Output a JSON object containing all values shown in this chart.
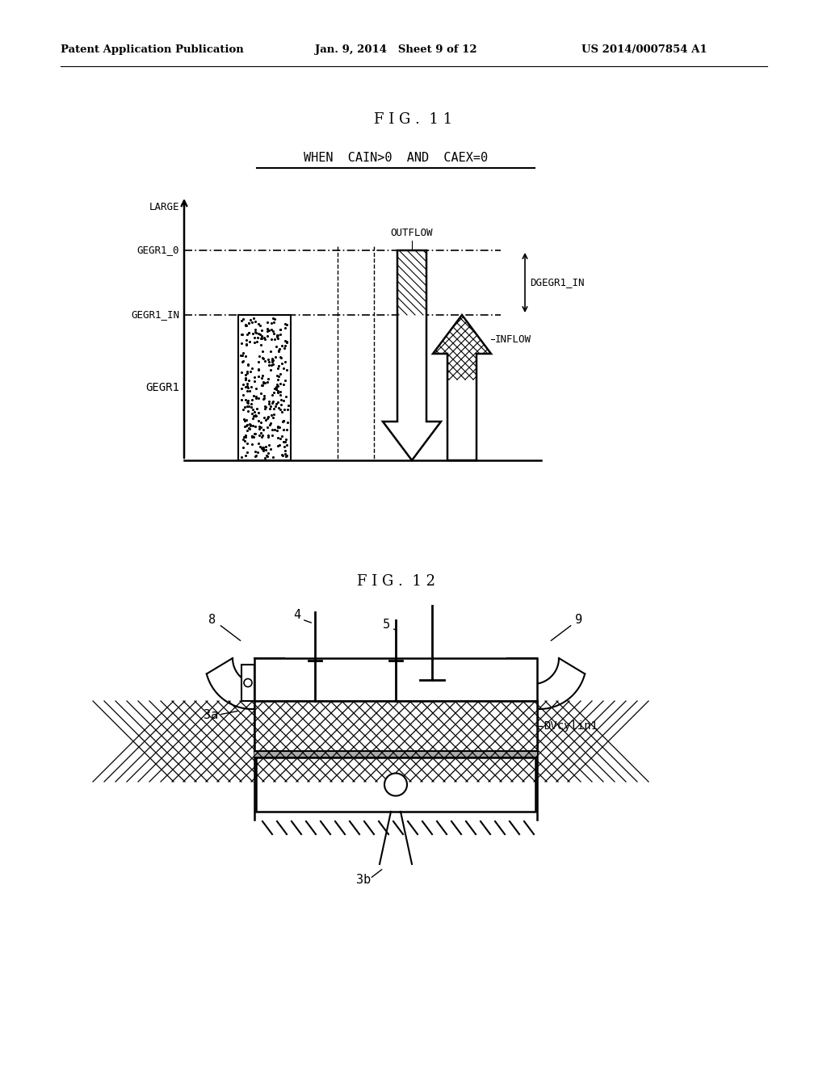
{
  "bg_color": "#ffffff",
  "header_left": "Patent Application Publication",
  "header_mid": "Jan. 9, 2014   Sheet 9 of 12",
  "header_right": "US 2014/0007854 A1",
  "fig11_title": "F I G .  1 1",
  "fig11_subtitle": "WHEN  CAIN>0  AND  CAEX=0",
  "fig12_title": "F I G .  1 2",
  "label_large": "LARGE",
  "label_gegr1_0": "GEGR1_0",
  "label_gegr1_in": "GEGR1_IN",
  "label_gegr1": "GEGR1",
  "label_outflow": "OUTFLOW",
  "label_inflow": "INFLOW",
  "label_dgegr1_in": "DGEGR1_IN",
  "label_8": "8",
  "label_4": "4",
  "label_5": "5",
  "label_9": "9",
  "label_3a": "3a",
  "label_3b": "3b",
  "label_dvcylin1": "DVcylin1"
}
